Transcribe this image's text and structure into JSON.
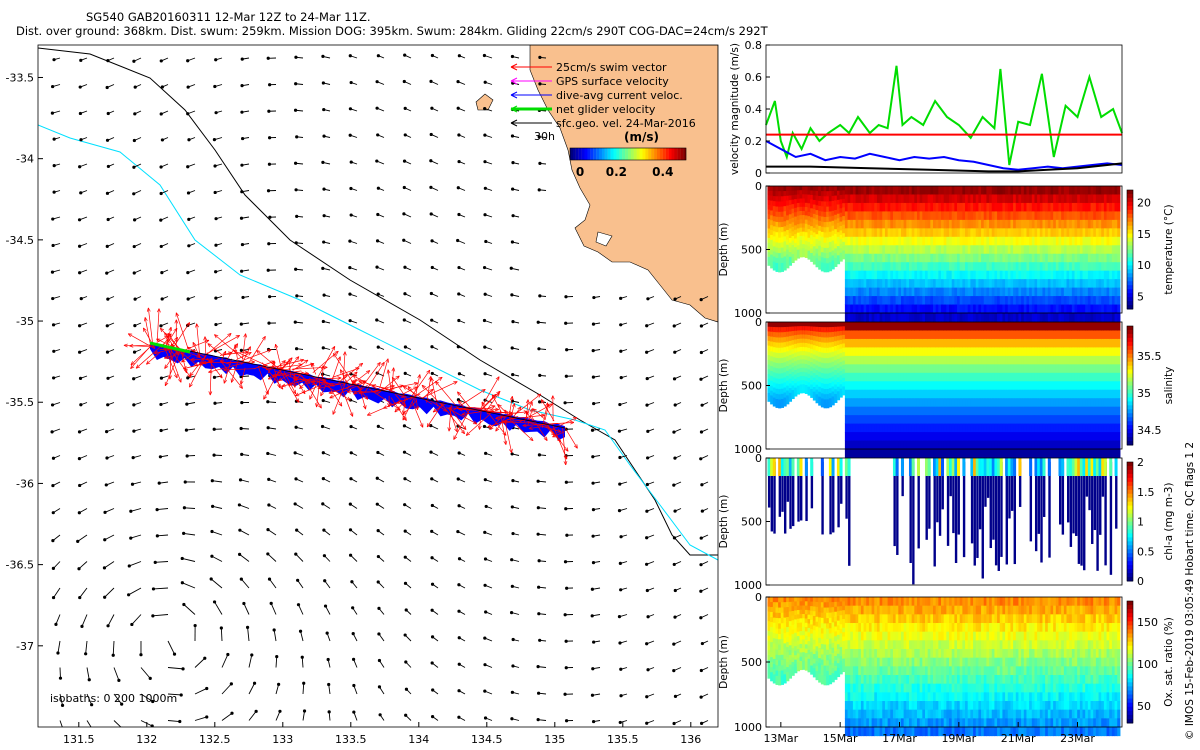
{
  "title": {
    "line1": "SG540 GAB20160311 12-Mar 12Z to 24-Mar 11Z.",
    "line2": "Dist. over ground: 368km. Dist. swum: 259km. Mission DOG: 395km. Swum: 284km. Gliding 22cm/s 290T COG-DAC=24cm/s 292T"
  },
  "credit": "© IMOS 15-Feb-2019 03:05:49 Hobart time. QC flags 1  2",
  "colors": {
    "land": "#f9c08e",
    "isobath_200": "#000000",
    "isobath_1000": "#00e0ff",
    "swim": "#ff0000",
    "gps": "#ff00ff",
    "dac": "#0000ff",
    "net": "#00dd00",
    "geo": "#000000"
  },
  "map": {
    "xticks": [
      "131.5",
      "132",
      "132.5",
      "133",
      "133.5",
      "134",
      "134.5",
      "135",
      "135.5",
      "136"
    ],
    "yticks": [
      "-33.5",
      "-34",
      "-34.5",
      "-35",
      "-35.5",
      "-36",
      "-36.5",
      "-37"
    ],
    "xlim": [
      131.2,
      136.2
    ],
    "ylim": [
      -37.5,
      -33.3
    ],
    "isobaths_label": "isobaths: 0   200  1000m",
    "legend": [
      {
        "label": "25cm/s swim vector",
        "color": "#ff0000"
      },
      {
        "label": "GPS surface velocity",
        "color": "#ff00ff"
      },
      {
        "label": "dive-avg current veloc.",
        "color": "#0000ff"
      },
      {
        "label": "net glider velocity",
        "color": "#00dd00"
      },
      {
        "label": "sfc.geo. vel. 24-Mar-2016",
        "color": "#000000"
      }
    ],
    "legend_30h": "30h",
    "colorbar_title": "(m/s)",
    "colorbar_ticks": [
      "0",
      "0.2",
      "0.4"
    ],
    "colorbar_range": [
      0,
      0.5
    ]
  },
  "chart_data": [
    {
      "type": "line",
      "title": "",
      "xlabel": "",
      "ylabel": "velocity magnitude (m/s)",
      "xlim": [
        12.5,
        24.5
      ],
      "ylim": [
        0,
        0.8
      ],
      "yticks": [
        "0",
        "0.2",
        "0.4",
        "0.6",
        "0.8"
      ],
      "series": [
        {
          "color": "#00dd00",
          "x": [
            12.5,
            12.8,
            13.0,
            13.2,
            13.4,
            13.7,
            14.0,
            14.3,
            14.6,
            15.0,
            15.3,
            15.6,
            16.0,
            16.3,
            16.6,
            16.9,
            17.1,
            17.4,
            17.8,
            18.2,
            18.6,
            19.0,
            19.4,
            19.8,
            20.2,
            20.4,
            20.7,
            21.0,
            21.4,
            21.8,
            22.2,
            22.6,
            23.0,
            23.4,
            23.8,
            24.2,
            24.5
          ],
          "y": [
            0.3,
            0.45,
            0.2,
            0.1,
            0.25,
            0.15,
            0.28,
            0.2,
            0.25,
            0.3,
            0.25,
            0.35,
            0.25,
            0.3,
            0.28,
            0.67,
            0.3,
            0.35,
            0.3,
            0.45,
            0.35,
            0.3,
            0.22,
            0.35,
            0.28,
            0.65,
            0.05,
            0.32,
            0.3,
            0.62,
            0.1,
            0.42,
            0.35,
            0.6,
            0.35,
            0.4,
            0.25
          ]
        },
        {
          "color": "#0000ff",
          "x": [
            12.5,
            13.0,
            13.5,
            14.0,
            14.5,
            15.0,
            15.5,
            16.0,
            16.5,
            17.0,
            17.5,
            18.0,
            18.5,
            19.0,
            19.5,
            20.0,
            20.5,
            21.0,
            21.5,
            22.0,
            22.5,
            23.0,
            23.5,
            24.0,
            24.5
          ],
          "y": [
            0.2,
            0.15,
            0.1,
            0.12,
            0.08,
            0.1,
            0.09,
            0.12,
            0.1,
            0.08,
            0.1,
            0.09,
            0.1,
            0.08,
            0.07,
            0.05,
            0.03,
            0.02,
            0.03,
            0.04,
            0.03,
            0.04,
            0.05,
            0.06,
            0.05
          ]
        },
        {
          "color": "#000000",
          "x": [
            12.5,
            14.0,
            16.0,
            18.0,
            20.0,
            21.0,
            22.0,
            23.0,
            24.0,
            24.5
          ],
          "y": [
            0.04,
            0.04,
            0.03,
            0.02,
            0.01,
            0.01,
            0.02,
            0.03,
            0.05,
            0.06
          ]
        },
        {
          "color": "#ff0000",
          "x": [
            12.5,
            24.5
          ],
          "y": [
            0.24,
            0.24
          ]
        }
      ]
    },
    {
      "type": "scatter",
      "title": "",
      "ylabel": "Depth (m)",
      "cbar_label": "temperature (°C)",
      "ylim": [
        0,
        1000
      ],
      "clim": [
        3,
        22
      ],
      "yticks": [
        "0",
        "500",
        "1000"
      ],
      "cbar_ticks": [
        "5",
        "10",
        "15",
        "20"
      ]
    },
    {
      "type": "scatter",
      "title": "",
      "ylabel": "Depth (m)",
      "cbar_label": "salinity",
      "ylim": [
        0,
        1000
      ],
      "clim": [
        34.3,
        35.9
      ],
      "yticks": [
        "0",
        "500",
        "1000"
      ],
      "cbar_ticks": [
        "34.5",
        "35",
        "35.5"
      ]
    },
    {
      "type": "scatter",
      "title": "",
      "ylabel": "Depth (m)",
      "cbar_label": "chl-a (mg m-3)",
      "ylim": [
        0,
        1000
      ],
      "clim": [
        0,
        2
      ],
      "yticks": [
        "0",
        "500",
        "1000"
      ],
      "cbar_ticks": [
        "0",
        "0.5",
        "1",
        "1.5",
        "2"
      ]
    },
    {
      "type": "scatter",
      "title": "",
      "ylabel": "Depth (m)",
      "cbar_label": "Ox. sat. ratio (%)",
      "ylim": [
        0,
        1000
      ],
      "clim": [
        30,
        175
      ],
      "yticks": [
        "0",
        "500",
        "1000"
      ],
      "cbar_ticks": [
        "50",
        "100",
        "150"
      ]
    }
  ],
  "time_axis": {
    "ticks": [
      "13Mar",
      "15Mar",
      "17Mar",
      "19Mar",
      "21Mar",
      "23Mar"
    ],
    "tick_days": [
      13,
      15,
      17,
      19,
      21,
      23
    ]
  }
}
